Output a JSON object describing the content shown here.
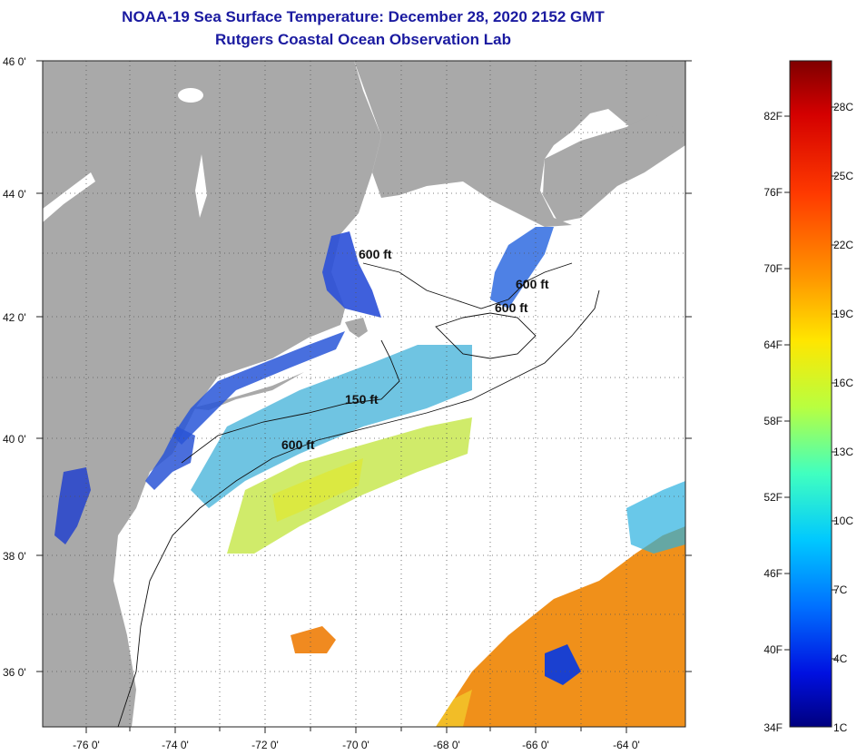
{
  "header": {
    "title": "NOAA-19 Sea Surface Temperature:  December 28, 2020 2152 GMT",
    "subtitle": "Rutgers Coastal Ocean Observation Lab"
  },
  "map": {
    "lon_range": [
      -77,
      -63
    ],
    "lat_range": [
      35,
      46
    ],
    "lon_ticks": [
      "-76 0'",
      "-74 0'",
      "-72 0'",
      "-70 0'",
      "-68 0'",
      "-66 0'",
      "-64 0'"
    ],
    "lon_tick_values": [
      -76,
      -74,
      -72,
      -70,
      -68,
      -66,
      -64
    ],
    "lat_ticks": [
      "46 0'",
      "44 0'",
      "42 0'",
      "40 0'",
      "38 0'",
      "36 0'"
    ],
    "lat_tick_values": [
      46,
      44,
      42,
      40,
      38,
      36
    ],
    "land_color": "#a9a9a9",
    "cloud_color": "#ffffff",
    "grid": "dotted",
    "contour_labels": [
      {
        "text": "600 ft",
        "lon": -70.5,
        "lat": 42.8
      },
      {
        "text": "600 ft",
        "lon": -66.5,
        "lat": 42.5
      },
      {
        "text": "600 ft",
        "lon": -66.8,
        "lat": 42.1
      },
      {
        "text": "150 ft",
        "lon": -69.8,
        "lat": 40.6
      },
      {
        "text": "600 ft",
        "lon": -71.4,
        "lat": 39.9
      }
    ]
  },
  "colorbar": {
    "fahrenheit_labels": [
      "82F",
      "76F",
      "70F",
      "64F",
      "58F",
      "52F",
      "46F",
      "40F",
      "34F"
    ],
    "celsius_labels": [
      "28C",
      "25C",
      "22C",
      "19C",
      "16C",
      "13C",
      "10C",
      "7C",
      "4C",
      "1C"
    ],
    "colors": [
      "#7f0000",
      "#d40000",
      "#ff3a00",
      "#ff9a00",
      "#ffe600",
      "#b8ff40",
      "#40ffc0",
      "#00c8ff",
      "#0070ff",
      "#0010e0",
      "#00007f"
    ]
  }
}
